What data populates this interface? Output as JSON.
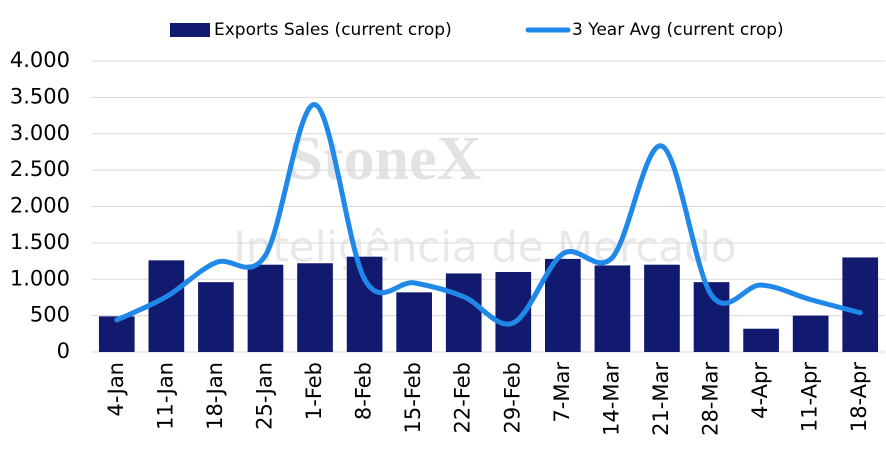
{
  "chart_data": {
    "type": "bar_line",
    "watermark": [
      "StoneX",
      "Inteligência de Mercado"
    ],
    "categories": [
      "4-Jan",
      "11-Jan",
      "18-Jan",
      "25-Jan",
      "1-Feb",
      "8-Feb",
      "15-Feb",
      "22-Feb",
      "29-Feb",
      "7-Mar",
      "14-Mar",
      "21-Mar",
      "28-Mar",
      "4-Apr",
      "11-Apr",
      "18-Apr"
    ],
    "series": [
      {
        "name": "Exports Sales (current crop)",
        "type": "bar",
        "color": "#121a70",
        "values": [
          490,
          1260,
          960,
          1200,
          1220,
          1310,
          820,
          1080,
          1100,
          1280,
          1190,
          1200,
          960,
          320,
          500,
          1300
        ]
      },
      {
        "name": "3 Year Avg (current crop)",
        "type": "line",
        "color": "#1f88e8",
        "values": [
          440,
          760,
          1230,
          1330,
          3400,
          1000,
          950,
          760,
          400,
          1350,
          1300,
          2830,
          780,
          920,
          720,
          540
        ]
      }
    ],
    "ylim": [
      0,
      4000
    ],
    "yticks": [
      0,
      500,
      {
        "value": 1000,
        "label": "1.000"
      },
      {
        "value": 1500,
        "label": "1.500"
      },
      {
        "value": 2000,
        "label": "2.000"
      },
      {
        "value": 2500,
        "label": "2.500"
      },
      {
        "value": 3000,
        "label": "3.000"
      },
      {
        "value": 3500,
        "label": "3.500"
      },
      {
        "value": 4000,
        "label": "4.000"
      }
    ],
    "grid": true,
    "legend": "top"
  }
}
